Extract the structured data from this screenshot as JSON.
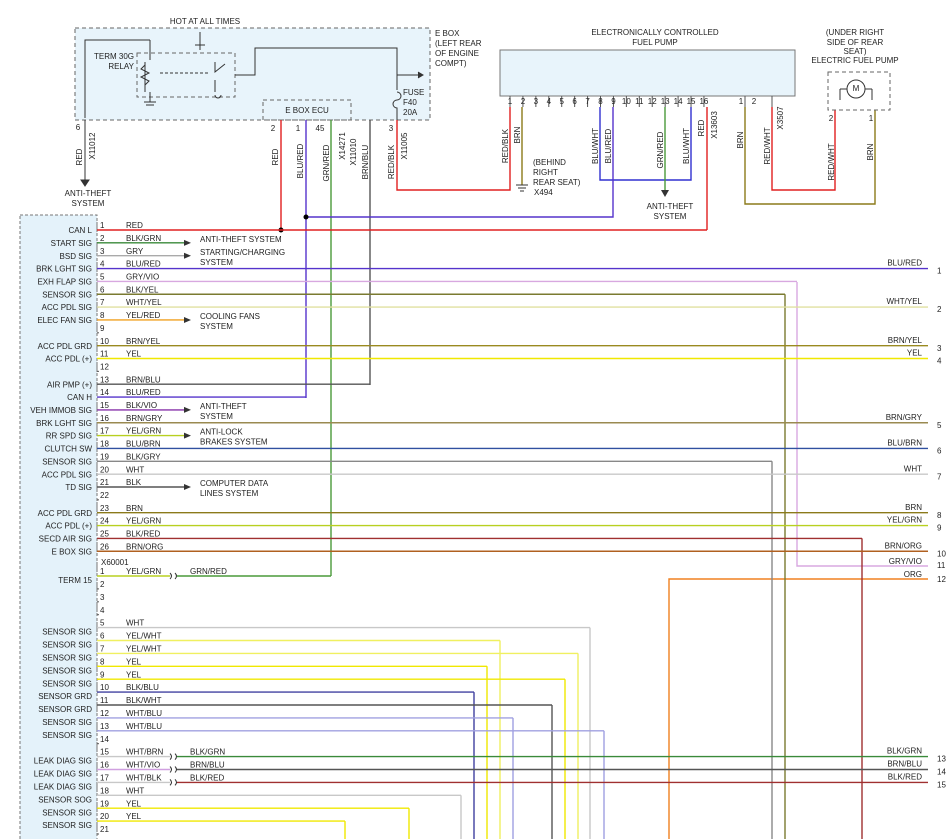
{
  "labels": {
    "hot": "HOT AT ALL TIMES",
    "ebox1": "E BOX",
    "ebox2": "(LEFT REAR",
    "ebox3": "OF ENGINE",
    "ebox4": "COMPT)",
    "relay1": "TERM 30G",
    "relay2": "RELAY",
    "fuse1": "FUSE",
    "fuse2": "F40",
    "fuse3": "20A",
    "ecu": "E BOX ECU",
    "ebox_pin6": 6,
    "x11012": "X11012",
    "red_left": "RED",
    "at1_1": "ANTI-THEFT",
    "at1_2": "SYSTEM",
    "ecu_pin2": 2,
    "ecu_pin1": 1,
    "ecu_pin45": 45,
    "ebox_pin3": 3,
    "w_red": "RED",
    "w_blured": "BLU/RED",
    "w_grnred": "GRN/RED",
    "x14271": "X14271",
    "x11010": "X11010",
    "w_brnblu": "BRN/BLU",
    "w_redblk": "RED/BLK",
    "x11005": "X11005",
    "pump1": "ELECTRONICALLY CONTROLLED",
    "pump2": "FUEL PUMP",
    "pw_redblk": "RED/BLK",
    "pw_brn": "BRN",
    "pw_bluwht1": "BLU/WHT",
    "pw_blured": "BLU/RED",
    "pw_grnred": "GRN/RED",
    "pw_bluwht2": "BLU/WHT",
    "pw_red": "RED",
    "x13603": "X13603",
    "x3507_pin1": 1,
    "x3507_pin2": 2,
    "x3507": "X3507",
    "xw_brn": "BRN",
    "xw_redwht": "RED/WHT",
    "behind1": "(BEHIND",
    "behind2": "RIGHT",
    "behind3": "REAR SEAT)",
    "x494": "X494",
    "at2_1": "ANTI-THEFT",
    "at2_2": "SYSTEM",
    "efp1": "(UNDER RIGHT",
    "efp2": "SIDE OF REAR",
    "efp3": "SEAT)",
    "efp4": "ELECTRIC FUEL PUMP",
    "motor": "M",
    "efp_pin2": 2,
    "efp_pin1": 1,
    "ew_redwht": "RED/WHT",
    "ew_brn": "BRN",
    "x60001": "X60001",
    "gryvio": "GRY/VIO",
    "gryvio_n": 11,
    "org": "ORG",
    "org_n": 12
  },
  "pump_pins": [
    1,
    2,
    3,
    4,
    5,
    6,
    7,
    8,
    9,
    10,
    11,
    12,
    13,
    14,
    15,
    16
  ],
  "rows1": [
    {
      "pin": 1,
      "label": "CAN L",
      "wire": "RED"
    },
    {
      "pin": 2,
      "label": "START SIG",
      "wire": "BLK/GRN",
      "dest": [
        "ANTI-THEFT SYSTEM"
      ]
    },
    {
      "pin": 3,
      "label": "BSD SIG",
      "wire": "GRY",
      "dest": [
        "STARTING/CHARGING",
        "SYSTEM"
      ]
    },
    {
      "pin": 4,
      "label": "BRK LGHT SIG",
      "wire": "BLU/RED",
      "out_wire": "BLU/RED",
      "out_num": 1
    },
    {
      "pin": 5,
      "label": "EXH FLAP SIG",
      "wire": "GRY/VIO"
    },
    {
      "pin": 6,
      "label": "SENSOR SIG",
      "wire": "BLK/YEL"
    },
    {
      "pin": 7,
      "label": "ACC PDL SIG",
      "wire": "WHT/YEL",
      "out_wire": "WHT/YEL",
      "out_num": 2
    },
    {
      "pin": 8,
      "label": "ELEC FAN SIG",
      "wire": "YEL/RED",
      "dest": [
        "COOLING FANS",
        "SYSTEM"
      ]
    },
    {
      "pin": 9
    },
    {
      "pin": 10,
      "label": "ACC PDL GRD",
      "wire": "BRN/YEL",
      "out_wire": "BRN/YEL",
      "out_num": 3
    },
    {
      "pin": 11,
      "label": "ACC PDL (+)",
      "wire": "YEL",
      "out_wire": "YEL",
      "out_num": 4
    },
    {
      "pin": 12
    },
    {
      "pin": 13,
      "label": "AIR PMP (+)",
      "wire": "BRN/BLU"
    },
    {
      "pin": 14,
      "label": "CAN H",
      "wire": "BLU/RED"
    },
    {
      "pin": 15,
      "label": "VEH IMMOB SIG",
      "wire": "BLK/VIO",
      "dest": [
        "ANTI-THEFT",
        "SYSTEM"
      ]
    },
    {
      "pin": 16,
      "label": "BRK LGHT SIG",
      "wire": "BRN/GRY",
      "out_wire": "BRN/GRY",
      "out_num": 5
    },
    {
      "pin": 17,
      "label": "RR SPD SIG",
      "wire": "YEL/GRN",
      "dest": [
        "ANTI-LOCK",
        "BRAKES SYSTEM"
      ]
    },
    {
      "pin": 18,
      "label": "CLUTCH SW",
      "wire": "BLU/BRN",
      "out_wire": "BLU/BRN",
      "out_num": 6
    },
    {
      "pin": 19,
      "label": "SENSOR SIG",
      "wire": "BLK/GRY"
    },
    {
      "pin": 20,
      "label": "ACC PDL SIG",
      "wire": "WHT",
      "out_wire": "WHT",
      "out_num": 7
    },
    {
      "pin": 21,
      "label": "TD SIG",
      "wire": "BLK",
      "dest": [
        "COMPUTER DATA",
        "LINES SYSTEM"
      ]
    },
    {
      "pin": 22
    },
    {
      "pin": 23,
      "label": "ACC PDL GRD",
      "wire": "BRN",
      "out_wire": "BRN",
      "out_num": 8
    },
    {
      "pin": 24,
      "label": "ACC PDL (+)",
      "wire": "YEL/GRN",
      "out_wire": "YEL/GRN",
      "out_num": 9
    },
    {
      "pin": 25,
      "label": "SECD AIR SIG",
      "wire": "BLK/RED"
    },
    {
      "pin": 26,
      "label": "E BOX SIG",
      "wire": "BRN/ORG",
      "out_wire": "BRN/ORG",
      "out_num": 10
    }
  ],
  "rows2": [
    {
      "pin": 1,
      "label": "TERM 15",
      "wire": "YEL/GRN",
      "wire_out": "GRN/RED"
    },
    {
      "pin": 2
    },
    {
      "pin": 3
    },
    {
      "pin": 4
    },
    {
      "pin": 5,
      "label": "SENSOR SIG",
      "wire": "WHT"
    },
    {
      "pin": 6,
      "label": "SENSOR SIG",
      "wire": "YEL/WHT"
    },
    {
      "pin": 7,
      "label": "SENSOR SIG",
      "wire": "YEL/WHT"
    },
    {
      "pin": 8,
      "label": "SENSOR SIG",
      "wire": "YEL"
    },
    {
      "pin": 9,
      "label": "SENSOR SIG",
      "wire": "YEL"
    },
    {
      "pin": 10,
      "label": "SENSOR GRD",
      "wire": "BLK/BLU"
    },
    {
      "pin": 11,
      "label": "SENSOR GRD",
      "wire": "BLK/WHT"
    },
    {
      "pin": 12,
      "label": "SENSOR SIG",
      "wire": "WHT/BLU"
    },
    {
      "pin": 13,
      "label": "SENSOR SIG",
      "wire": "WHT/BLU"
    },
    {
      "pin": 14
    },
    {
      "pin": 15,
      "label": "LEAK DIAG SIG",
      "wire": "WHT/BRN",
      "wire_out": "BLK/GRN",
      "out_wire": "BLK/GRN",
      "out_num": 13
    },
    {
      "pin": 16,
      "label": "LEAK DIAG SIG",
      "wire": "WHT/VIO",
      "wire_out": "BRN/BLU",
      "out_wire": "BRN/BLU",
      "out_num": 14
    },
    {
      "pin": 17,
      "label": "LEAK DIAG SIG",
      "wire": "WHT/BLK",
      "wire_out": "BLK/RED",
      "out_wire": "BLK/RED",
      "out_num": 15
    },
    {
      "pin": 18,
      "label": "SENSOR SOG",
      "wire": "WHT"
    },
    {
      "pin": 19,
      "label": "SENSOR SIG",
      "wire": "YEL"
    },
    {
      "pin": 20,
      "label": "SENSOR SIG",
      "wire": "YEL"
    },
    {
      "pin": 21
    }
  ]
}
